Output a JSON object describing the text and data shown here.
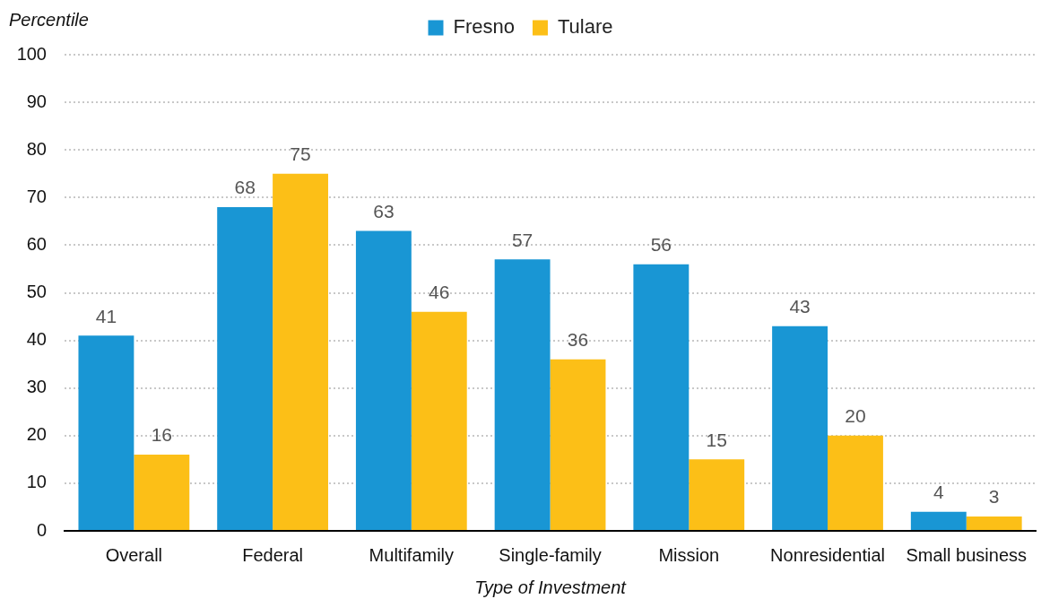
{
  "chart_data": {
    "type": "bar",
    "ylabel": "Percentile",
    "xlabel": "Type of Investment",
    "categories": [
      "Overall",
      "Federal",
      "Multifamily",
      "Single-family",
      "Mission",
      "Nonresidential",
      "Small business"
    ],
    "series": [
      {
        "name": "Fresno",
        "color": "#1996d4",
        "values": [
          41,
          68,
          63,
          57,
          56,
          43,
          4
        ]
      },
      {
        "name": "Tulare",
        "color": "#fcbf17",
        "values": [
          16,
          75,
          46,
          36,
          15,
          20,
          3
        ]
      }
    ],
    "ylim": [
      0,
      100
    ],
    "yticks": [
      0,
      10,
      20,
      30,
      40,
      50,
      60,
      70,
      80,
      90,
      100
    ],
    "grid": "y",
    "legend": "top",
    "data_labels": true
  }
}
